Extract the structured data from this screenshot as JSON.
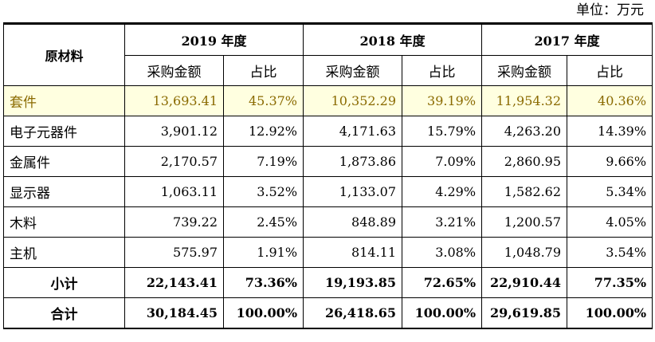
{
  "unit_label": "单位：万元",
  "header": {
    "material": "原材料",
    "years": [
      "2019 年度",
      "2018 年度",
      "2017 年度"
    ],
    "amount_label": "采购金额",
    "ratio_label": "占比"
  },
  "rows": [
    {
      "name": "套件",
      "v": [
        "13,693.41",
        "45.37%",
        "10,352.29",
        "39.19%",
        "11,954.32",
        "40.36%"
      ]
    },
    {
      "name": "电子元器件",
      "v": [
        "3,901.12",
        "12.92%",
        "4,171.63",
        "15.79%",
        "4,263.20",
        "14.39%"
      ]
    },
    {
      "name": "金属件",
      "v": [
        "2,170.57",
        "7.19%",
        "1,873.86",
        "7.09%",
        "2,860.95",
        "9.66%"
      ]
    },
    {
      "name": "显示器",
      "v": [
        "1,063.11",
        "3.52%",
        "1,133.07",
        "4.29%",
        "1,582.62",
        "5.34%"
      ]
    },
    {
      "name": "木料",
      "v": [
        "739.22",
        "2.45%",
        "848.89",
        "3.21%",
        "1,200.57",
        "4.05%"
      ]
    },
    {
      "name": "主机",
      "v": [
        "575.97",
        "1.91%",
        "814.11",
        "3.08%",
        "1,048.79",
        "3.54%"
      ]
    },
    {
      "name": "小计",
      "v": [
        "22,143.41",
        "73.36%",
        "19,193.85",
        "72.65%",
        "22,910.44",
        "77.35%"
      ]
    },
    {
      "name": "合计",
      "v": [
        "30,184.45",
        "100.00%",
        "26,418.65",
        "100.00%",
        "29,619.85",
        "100.00%"
      ]
    }
  ],
  "colors": {
    "highlight_bg": "#ffffe0",
    "highlight_text": "#8a6a00"
  }
}
